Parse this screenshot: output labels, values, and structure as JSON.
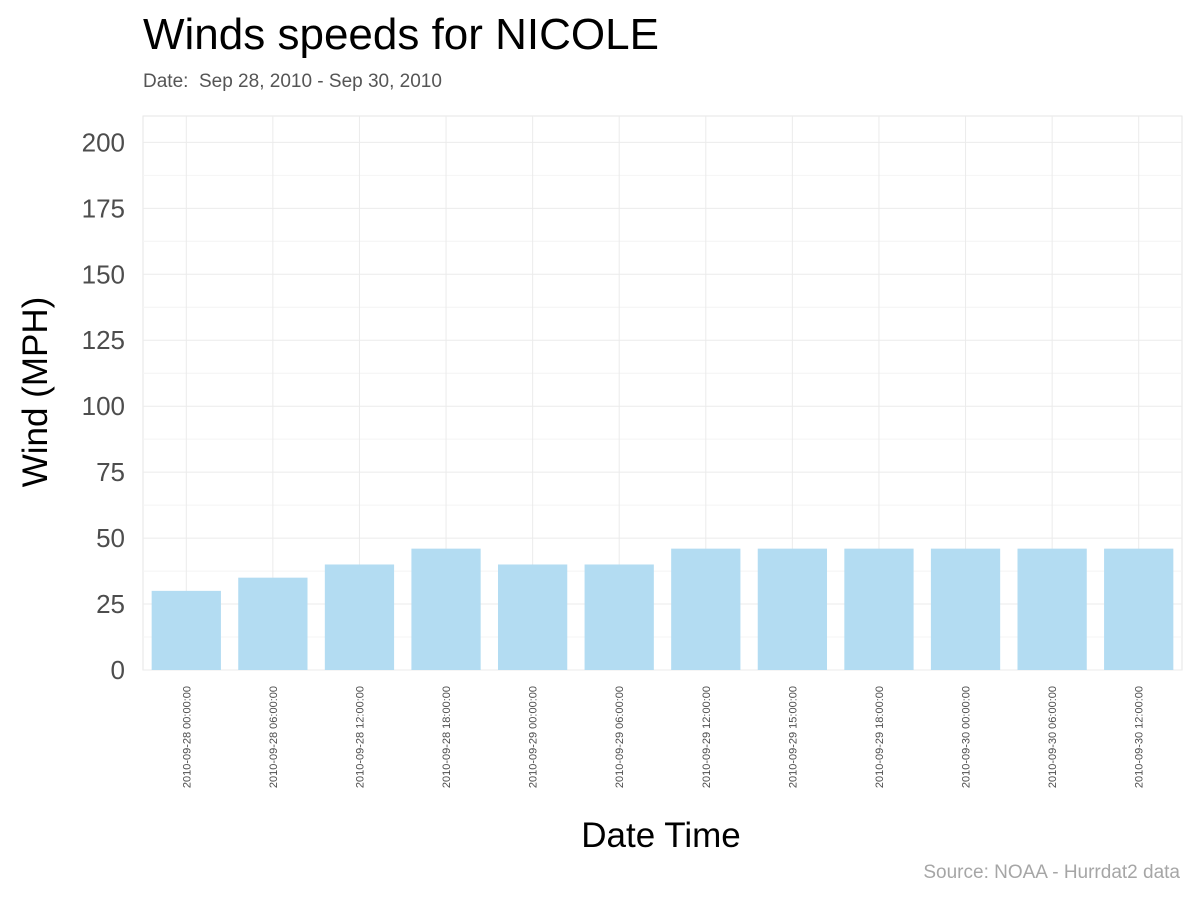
{
  "header": {
    "title": "Winds speeds for NICOLE",
    "subtitle": "Date:  Sep 28, 2010 - Sep 30, 2010",
    "caption": "Source: NOAA - Hurrdat2 data"
  },
  "colors": {
    "bar": "#b3dcf2",
    "grid": "#ebebeb",
    "panel_border": "#e6e6e6"
  },
  "chart_data": {
    "type": "bar",
    "title": "Winds speeds for NICOLE",
    "subtitle": "Date:  Sep 28, 2010 - Sep 30, 2010",
    "xlabel": "Date Time",
    "ylabel": "Wind (MPH)",
    "ylim": [
      0,
      210
    ],
    "yticks": [
      0,
      25,
      50,
      75,
      100,
      125,
      150,
      175,
      200
    ],
    "categories": [
      "2010-09-28 00:00:00",
      "2010-09-28 06:00:00",
      "2010-09-28 12:00:00",
      "2010-09-28 18:00:00",
      "2010-09-29 00:00:00",
      "2010-09-29 06:00:00",
      "2010-09-29 12:00:00",
      "2010-09-29 15:00:00",
      "2010-09-29 18:00:00",
      "2010-09-30 00:00:00",
      "2010-09-30 06:00:00",
      "2010-09-30 12:00:00"
    ],
    "values": [
      30,
      35,
      40,
      46,
      40,
      40,
      46,
      46,
      46,
      46,
      46,
      46
    ],
    "grid": true,
    "legend": "none",
    "caption": "Source: NOAA - Hurrdat2 data"
  }
}
